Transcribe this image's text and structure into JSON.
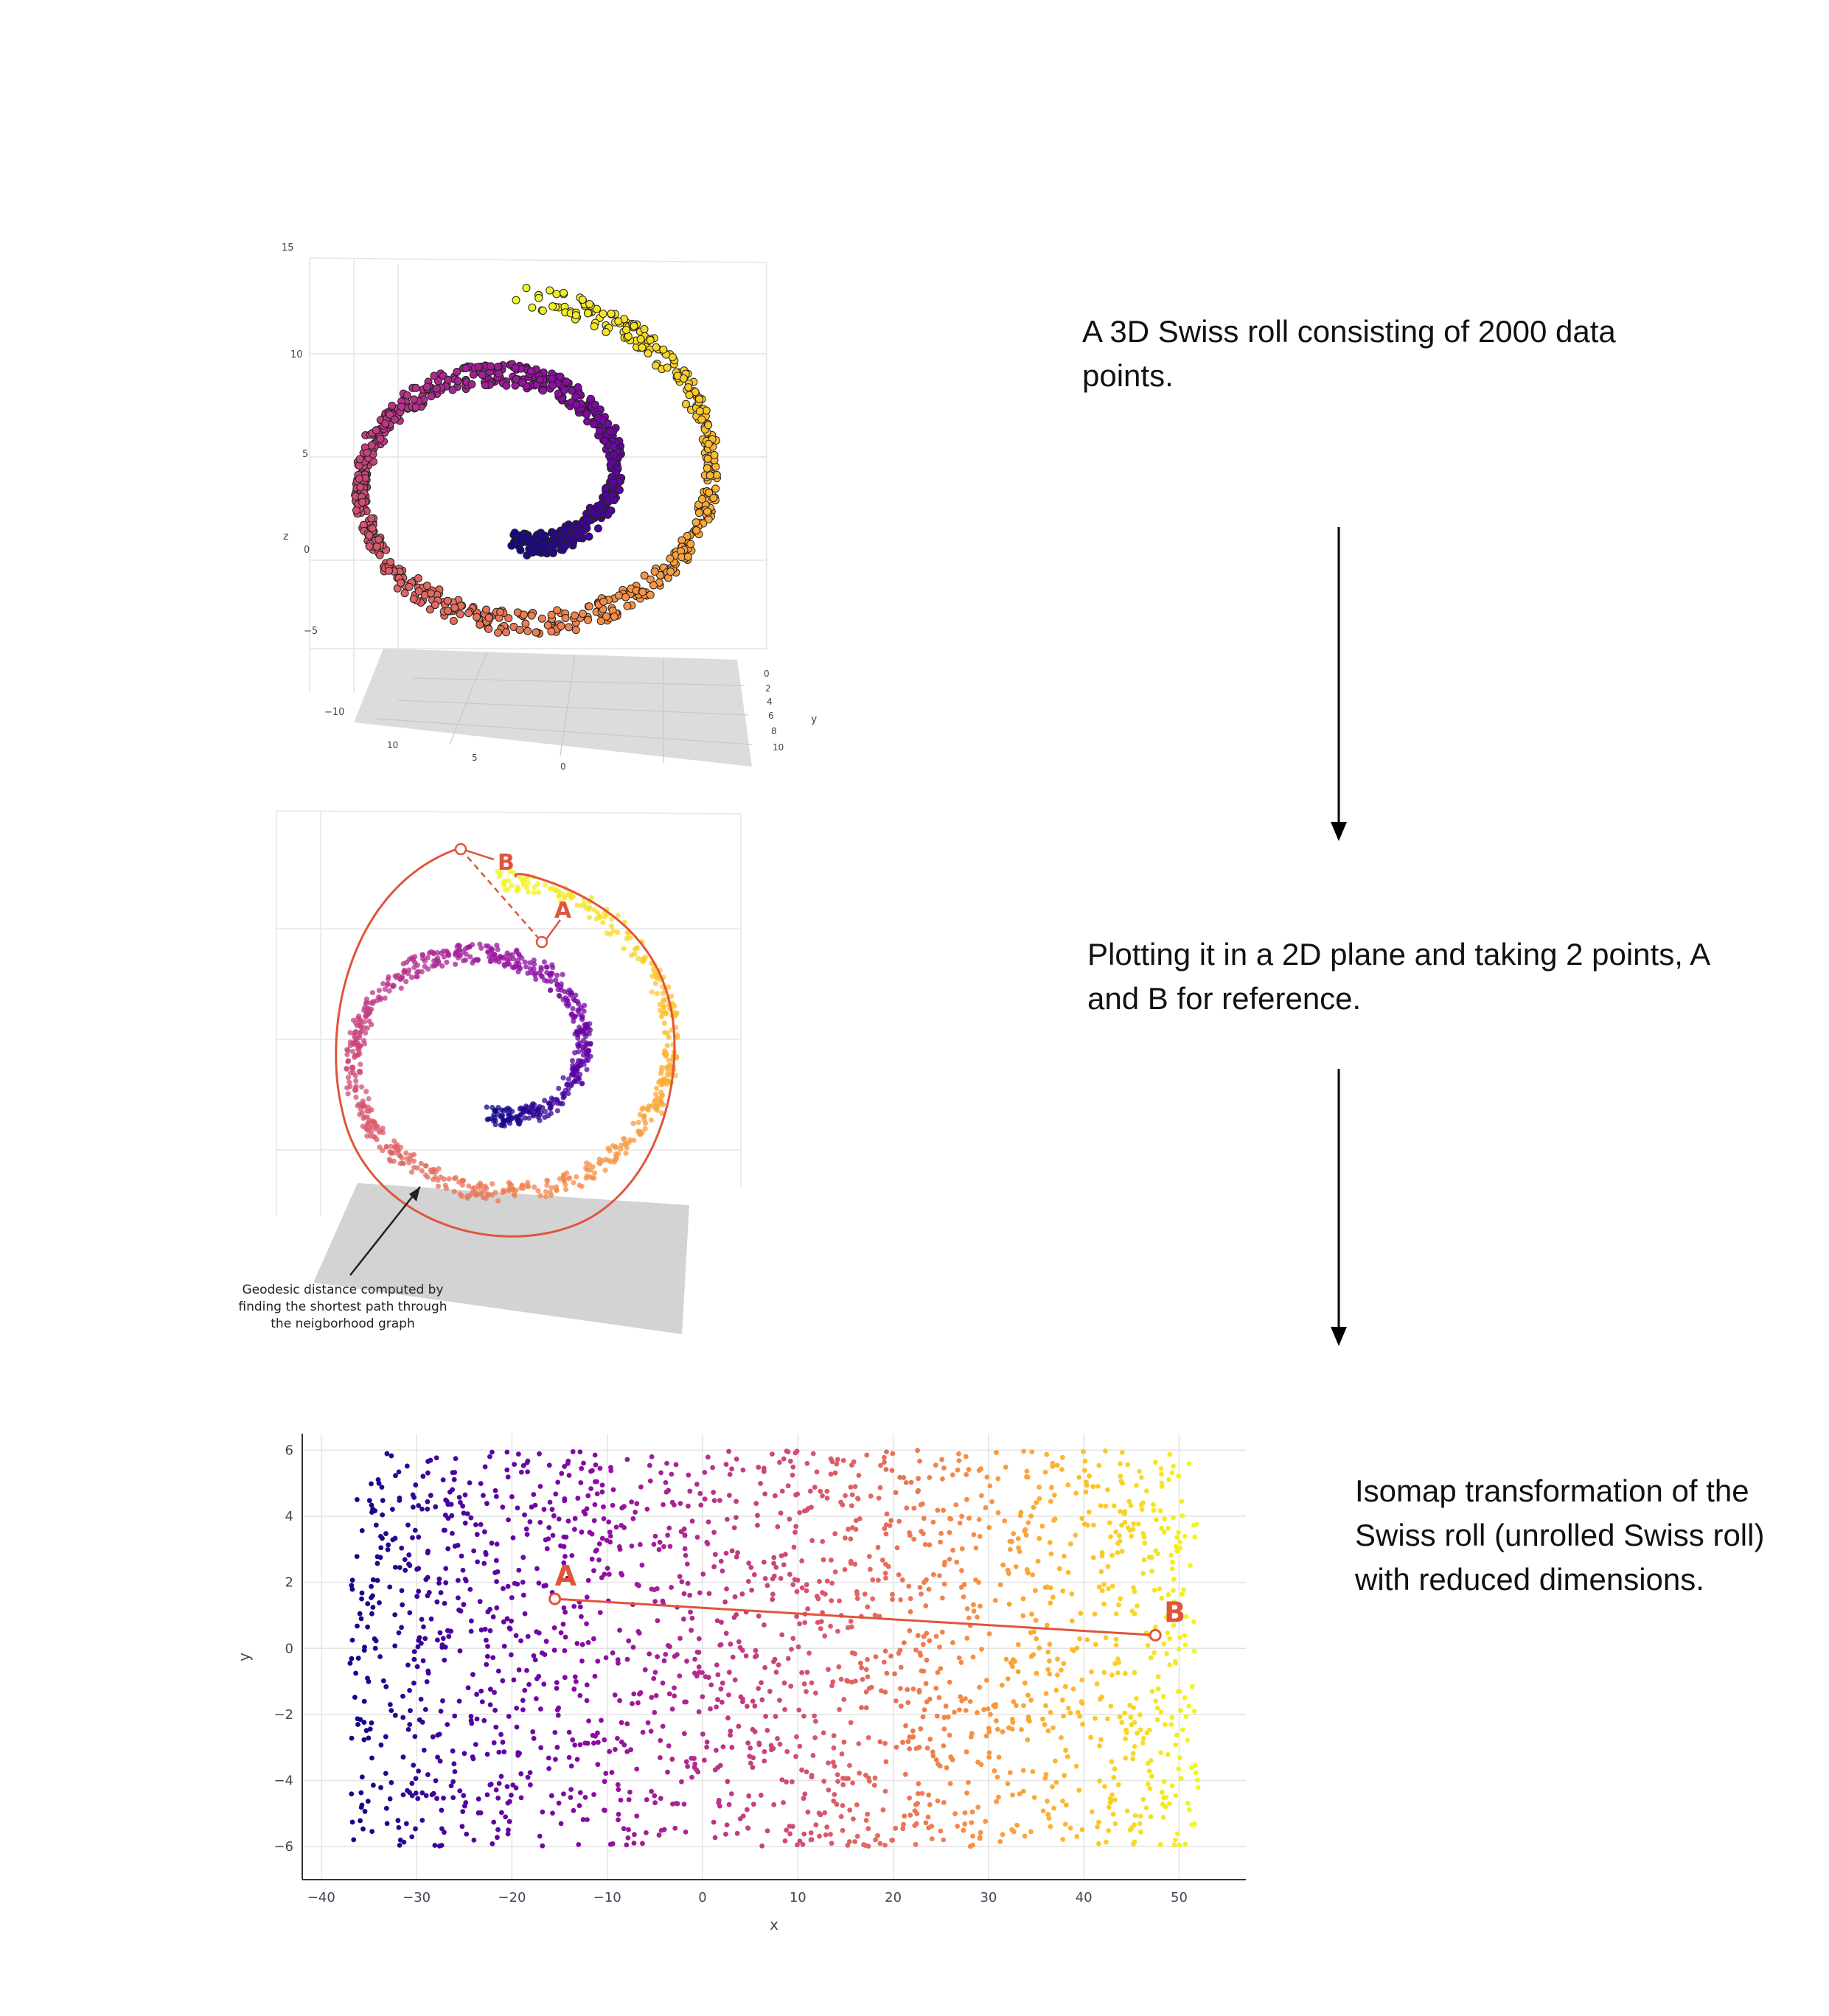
{
  "captions": {
    "step1": "A 3D Swiss roll consisting of 2000 data points.",
    "step2": "Plotting it in a 2D plane and taking 2 points, A and B for reference.",
    "step3": "Isomap transformation of the Swiss roll (unrolled Swiss roll) with reduced dimensions."
  },
  "panel_3d": {
    "z_axis_label": "z",
    "y_axis_label": "y",
    "z_ticks": [
      "15",
      "10",
      "5",
      "0",
      "−5",
      "−10"
    ],
    "y_ticks": [
      "0",
      "2",
      "4",
      "6",
      "8",
      "10"
    ],
    "x_ticks": [
      "10",
      "5",
      "0"
    ]
  },
  "panel_geodesic": {
    "point_a_label": "A",
    "point_b_label": "B",
    "annotation": [
      "Geodesic distance computed by",
      "finding the shortest path through",
      "the neigborhood graph"
    ]
  },
  "chart_data": {
    "type": "scatter",
    "xlabel": "x",
    "ylabel": "y",
    "xlim": [
      -42,
      57
    ],
    "ylim": [
      -7,
      6.5
    ],
    "x_ticks": [
      -40,
      -30,
      -20,
      -10,
      0,
      10,
      20,
      30,
      40,
      50
    ],
    "y_ticks": [
      6,
      4,
      2,
      0,
      -2,
      -4,
      -6
    ],
    "grid": true,
    "point_count": 2000,
    "point_x_range": [
      -37,
      52
    ],
    "point_y_range": [
      -6,
      6
    ],
    "colormap": "plasma (dark blue at x = -37 to yellow at x = 52)",
    "annotations": [
      {
        "label": "A",
        "x": -15.5,
        "y": 1.5
      },
      {
        "label": "B",
        "x": 47.5,
        "y": 0.4
      }
    ],
    "connector": {
      "from": "A",
      "to": "B",
      "color": "#e0553a"
    }
  },
  "colors": {
    "accent": "#e0553a",
    "plasma_dark": "#0d0887",
    "plasma_bright": "#f0f921",
    "text": "#111111"
  }
}
